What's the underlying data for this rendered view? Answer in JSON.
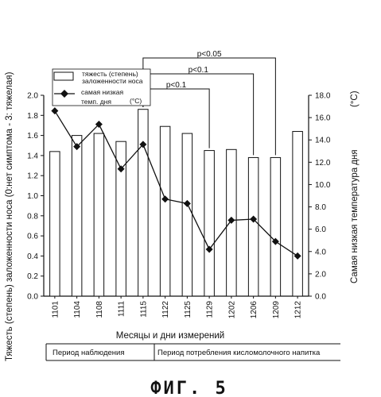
{
  "chart_data": {
    "type": "bar",
    "categories": [
      "1101",
      "1104",
      "1108",
      "1111",
      "1115",
      "1122",
      "1125",
      "1129",
      "1202",
      "1206",
      "1209",
      "1212"
    ],
    "series": [
      {
        "name": "тяжесть (степень) заложенности носа",
        "kind": "bar",
        "axis": "left",
        "values": [
          1.44,
          1.6,
          1.62,
          1.54,
          1.86,
          1.69,
          1.62,
          1.45,
          1.46,
          1.38,
          1.38,
          1.64
        ]
      },
      {
        "name": "самая низкая темп. дня",
        "kind": "line",
        "marker": "diamond",
        "axis": "right",
        "values": [
          16.6,
          13.4,
          15.4,
          11.4,
          13.6,
          8.7,
          8.3,
          4.2,
          6.8,
          6.9,
          4.9,
          3.6
        ]
      }
    ],
    "legend_unit": "(°C)",
    "y_left": {
      "min": 0,
      "max": 2.0,
      "step": 0.2,
      "tick_labels": [
        "0.0",
        "0.2",
        "0.4",
        "0.6",
        "0.8",
        "1.0",
        "1.2",
        "1.4",
        "1.6",
        "1.8",
        "2.0"
      ],
      "label": "Тяжесть (степень) заложенности носа (0:нет симптома - 3: тяжелая)"
    },
    "y_right": {
      "min": 0,
      "max": 18,
      "step": 2,
      "tick_labels": [
        "0.0",
        "2.0",
        "4.0",
        "6.0",
        "8.0",
        "10.0",
        "12.0",
        "14.0",
        "16.0",
        "18.0"
      ],
      "label": "Самая низкая температура дня",
      "unit": "(°C)"
    },
    "xlabel": "Месяцы и дни измерений",
    "significance": [
      {
        "text": "p<0.05",
        "from": "1115",
        "to": "1209"
      },
      {
        "text": "p<0.1",
        "from": "1115",
        "to": "1206"
      },
      {
        "text": "p<0.1",
        "from": "1115",
        "to": "1129"
      }
    ],
    "periods": [
      {
        "label": "Период наблюдения",
        "from": "1101",
        "to": "1115"
      },
      {
        "label": "Период потребления кисломолочного напитка",
        "from": "1122",
        "to": "1212"
      }
    ],
    "grid": false,
    "legend_position": "top-left"
  },
  "figure_caption": "ФИГ. 5",
  "colors": {
    "bar_fill": "#ffffff",
    "stroke": "#111111",
    "marker": "#111111"
  }
}
